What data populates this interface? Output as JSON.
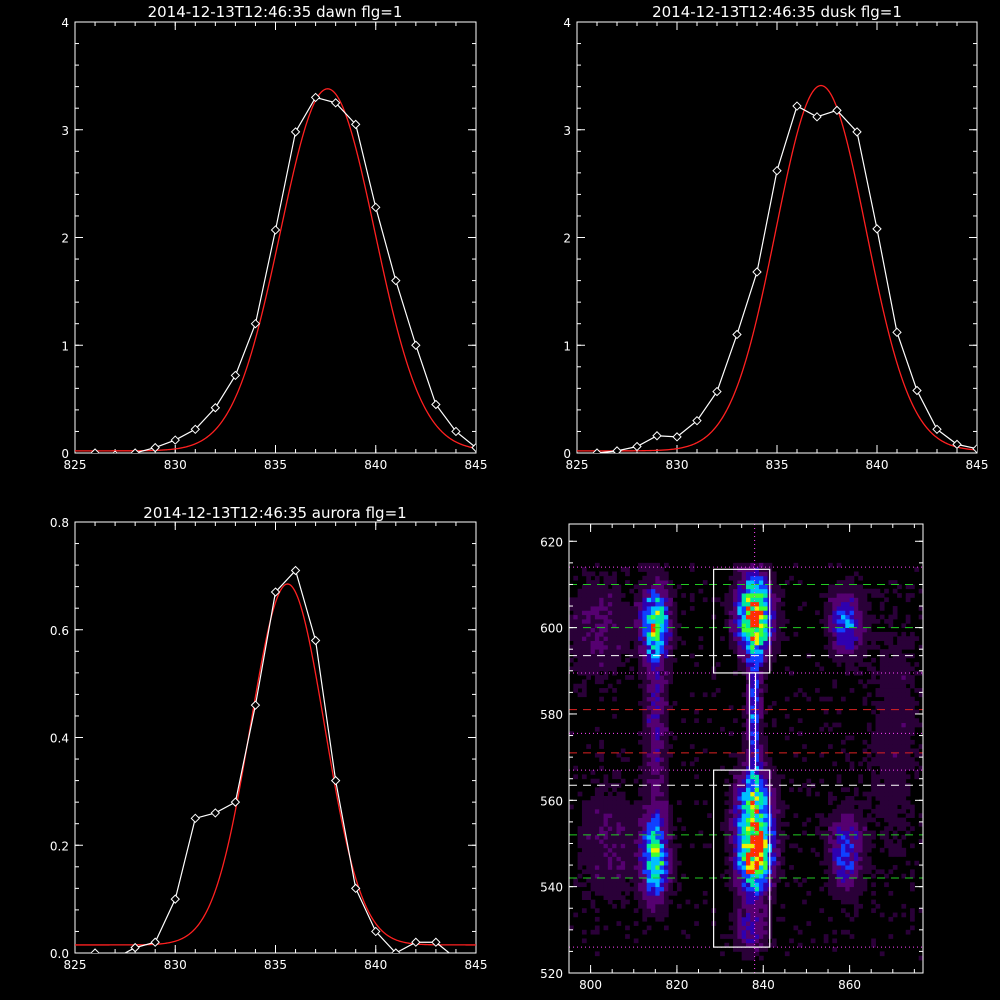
{
  "chart_data": [
    {
      "type": "line",
      "title": "2014-12-13T12:46:35 dawn flg=1",
      "xlim": [
        825,
        845
      ],
      "ylim": [
        0,
        4
      ],
      "x_ticks": [
        "825",
        "830",
        "835",
        "840",
        "845"
      ],
      "y_ticks": [
        "0",
        "1",
        "2",
        "3",
        "4"
      ],
      "colors": {
        "data": "#ffffff",
        "fit": "#ff2020",
        "axes": "#ffffff"
      },
      "series": [
        {
          "kind": "data",
          "marker": "diamond",
          "x": [
            826,
            827,
            828,
            829,
            830,
            831,
            832,
            833,
            834,
            835,
            836,
            837,
            838,
            839,
            840,
            841,
            842,
            843,
            844,
            845
          ],
          "y": [
            0.0,
            -0.02,
            0.0,
            0.05,
            0.12,
            0.22,
            0.42,
            0.72,
            1.2,
            2.07,
            2.98,
            3.3,
            3.25,
            3.05,
            2.28,
            1.6,
            1.0,
            0.45,
            0.2,
            0.05
          ]
        },
        {
          "kind": "fit",
          "gauss": {
            "a": 3.36,
            "mu": 837.6,
            "sigma": 2.35,
            "c": 0.02
          }
        }
      ]
    },
    {
      "type": "line",
      "title": "2014-12-13T12:46:35 dusk flg=1",
      "xlim": [
        825,
        845
      ],
      "ylim": [
        0,
        4
      ],
      "x_ticks": [
        "825",
        "830",
        "835",
        "840",
        "845"
      ],
      "y_ticks": [
        "0",
        "1",
        "2",
        "3",
        "4"
      ],
      "colors": {
        "data": "#ffffff",
        "fit": "#ff2020",
        "axes": "#ffffff"
      },
      "series": [
        {
          "kind": "data",
          "marker": "diamond",
          "x": [
            826,
            827,
            828,
            829,
            830,
            831,
            832,
            833,
            834,
            835,
            836,
            837,
            838,
            839,
            840,
            841,
            842,
            843,
            844,
            845
          ],
          "y": [
            0.0,
            0.02,
            0.06,
            0.16,
            0.15,
            0.3,
            0.57,
            1.1,
            1.68,
            2.62,
            3.22,
            3.12,
            3.18,
            2.98,
            2.08,
            1.12,
            0.58,
            0.22,
            0.08,
            0.04
          ]
        },
        {
          "kind": "fit",
          "gauss": {
            "a": 3.39,
            "mu": 837.2,
            "sigma": 2.25,
            "c": 0.02
          }
        }
      ]
    },
    {
      "type": "line",
      "title": "2014-12-13T12:46:35 aurora flg=1",
      "xlim": [
        825,
        845
      ],
      "ylim": [
        0,
        0.8
      ],
      "x_ticks": [
        "825",
        "830",
        "835",
        "840",
        "845"
      ],
      "y_ticks": [
        "0.0",
        "0.2",
        "0.4",
        "0.6",
        "0.8"
      ],
      "colors": {
        "data": "#ffffff",
        "fit": "#ff2020",
        "axes": "#ffffff"
      },
      "series": [
        {
          "kind": "data",
          "marker": "diamond",
          "x": [
            826,
            827,
            828,
            829,
            830,
            831,
            832,
            833,
            834,
            835,
            836,
            837,
            838,
            839,
            840,
            841,
            842,
            843,
            844,
            845
          ],
          "y": [
            0.0,
            -0.01,
            0.01,
            0.02,
            0.1,
            0.25,
            0.26,
            0.28,
            0.46,
            0.67,
            0.71,
            0.58,
            0.32,
            0.12,
            0.04,
            0.0,
            0.02,
            0.02,
            -0.01,
            -0.01
          ]
        },
        {
          "kind": "fit",
          "gauss": {
            "a": 0.67,
            "mu": 835.6,
            "sigma": 1.85,
            "c": 0.015
          }
        }
      ]
    },
    {
      "type": "heatmap",
      "xlim": [
        795,
        877
      ],
      "ylim": [
        520,
        624
      ],
      "x_ticks": [
        800,
        820,
        840,
        860
      ],
      "y_ticks": [
        520,
        540,
        560,
        580,
        600,
        620
      ],
      "colors": {
        "axes": "#ffffff",
        "green": "#22cc22",
        "red": "#dd2222",
        "white": "#ffffff",
        "magenta": "#ff44ff"
      },
      "colormap": [
        "#000000",
        "#2a0038",
        "#550070",
        "#2f00b0",
        "#1040ff",
        "#00c0ff",
        "#00e8a0",
        "#40ff30",
        "#f0f000",
        "#ff3000"
      ],
      "blobs": [
        {
          "x": 838,
          "y": 603,
          "sx": 2.8,
          "sy": 6.0,
          "a": 1.0
        },
        {
          "x": 838,
          "y": 548,
          "sx": 2.8,
          "sy": 6.5,
          "a": 1.0
        },
        {
          "x": 838,
          "y": 580,
          "sx": 1.2,
          "sy": 12.0,
          "a": 0.42
        },
        {
          "x": 838,
          "y": 560,
          "sx": 3.0,
          "sy": 6.0,
          "a": 0.45
        },
        {
          "x": 837,
          "y": 530,
          "sx": 2.5,
          "sy": 4.0,
          "a": 0.3
        },
        {
          "x": 815,
          "y": 601,
          "sx": 2.2,
          "sy": 6.0,
          "a": 0.7
        },
        {
          "x": 815,
          "y": 547,
          "sx": 2.2,
          "sy": 7.0,
          "a": 0.68
        },
        {
          "x": 815,
          "y": 578,
          "sx": 1.8,
          "sy": 12.0,
          "a": 0.28
        },
        {
          "x": 859,
          "y": 601,
          "sx": 2.5,
          "sy": 5.0,
          "a": 0.45
        },
        {
          "x": 859,
          "y": 548,
          "sx": 2.5,
          "sy": 6.0,
          "a": 0.42
        },
        {
          "x": 802,
          "y": 600,
          "sx": 5.0,
          "sy": 8.0,
          "a": 0.18
        },
        {
          "x": 804,
          "y": 550,
          "sx": 5.0,
          "sy": 10.0,
          "a": 0.15
        },
        {
          "x": 870,
          "y": 575,
          "sx": 5.0,
          "sy": 25.0,
          "a": 0.1
        }
      ],
      "boxes": [
        {
          "x0": 828.5,
          "x1": 841.5,
          "y0": 589.5,
          "y1": 613.5
        },
        {
          "x0": 836.8,
          "x1": 838.2,
          "y0": 567,
          "y1": 589.5
        },
        {
          "x0": 828.5,
          "x1": 841.5,
          "y0": 526,
          "y1": 567
        }
      ],
      "hlines": [
        {
          "y": 610,
          "color": "green",
          "style": "dash"
        },
        {
          "y": 600,
          "color": "green",
          "style": "dash"
        },
        {
          "y": 593.5,
          "color": "white",
          "style": "dash"
        },
        {
          "y": 614,
          "color": "magenta",
          "style": "dot"
        },
        {
          "y": 589.5,
          "color": "magenta",
          "style": "dot"
        },
        {
          "y": 581,
          "color": "red",
          "style": "dash"
        },
        {
          "y": 575.5,
          "color": "magenta",
          "style": "dot"
        },
        {
          "y": 571,
          "color": "red",
          "style": "dash"
        },
        {
          "y": 567,
          "color": "magenta",
          "style": "dot"
        },
        {
          "y": 563.5,
          "color": "white",
          "style": "dash"
        },
        {
          "y": 552,
          "color": "green",
          "style": "dash"
        },
        {
          "y": 542,
          "color": "green",
          "style": "dash"
        },
        {
          "y": 526,
          "color": "magenta",
          "style": "dot"
        }
      ],
      "vlines": [
        {
          "x": 838,
          "color": "magenta",
          "style": "dot"
        }
      ]
    }
  ]
}
